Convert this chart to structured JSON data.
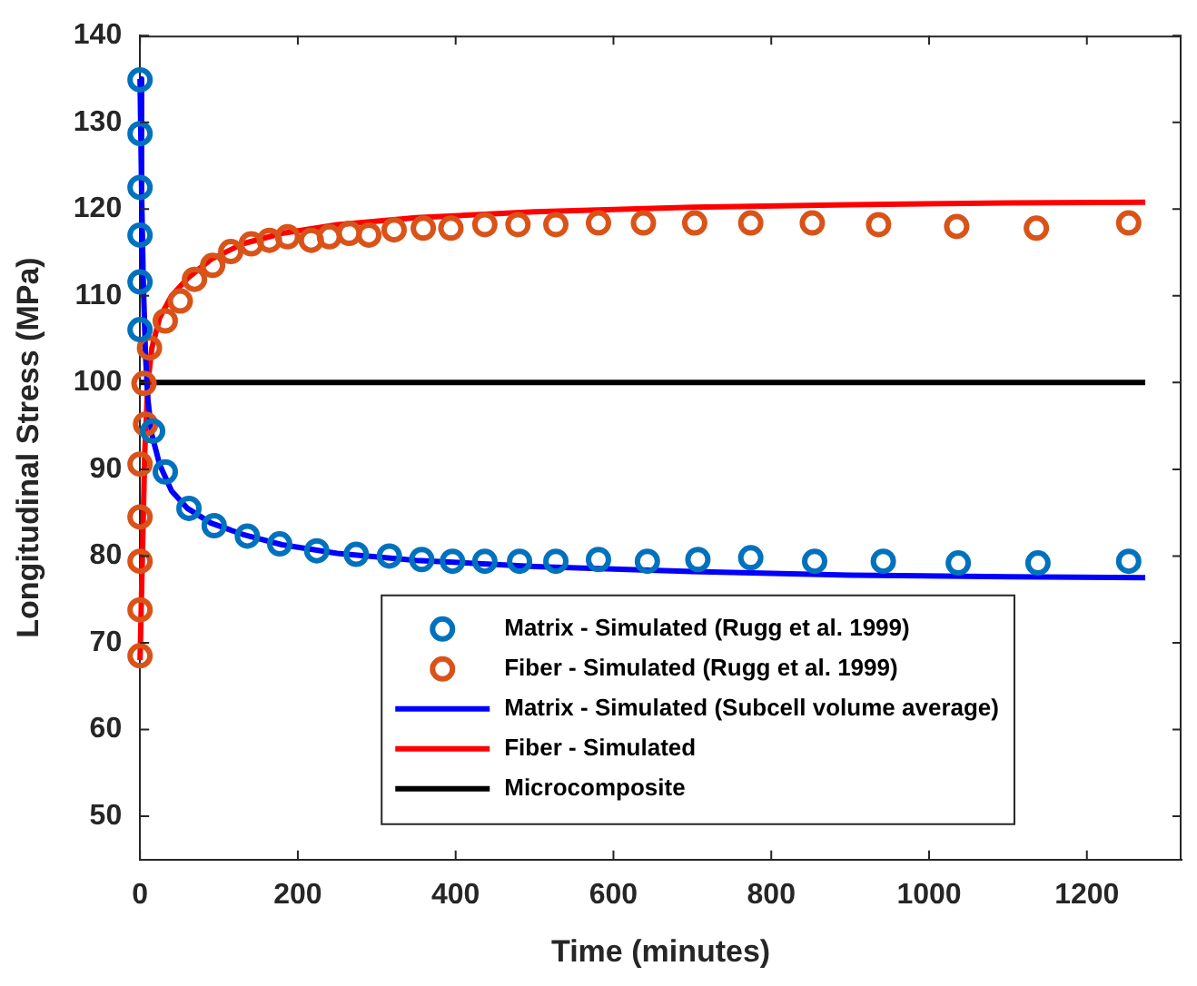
{
  "chart_data": {
    "type": "line",
    "xlabel": "Time (minutes)",
    "ylabel": "Longitudinal Stress (MPa)",
    "xlim": [
      0,
      1320
    ],
    "xticks": [
      0,
      200,
      400,
      600,
      800,
      1000,
      1200
    ],
    "ylim": [
      45,
      140
    ],
    "yticks": [
      50,
      60,
      70,
      80,
      90,
      100,
      110,
      120,
      130,
      140
    ],
    "grid": false,
    "legend": "bottom",
    "series": [
      {
        "name": "Matrix - Simulated (Rugg et al. 1999)",
        "type": "scatter",
        "marker": "circle",
        "color": "#0072bd",
        "x": [
          0,
          0,
          0,
          0,
          0,
          0,
          16,
          32,
          62,
          94,
          136,
          177,
          224,
          274,
          316,
          357,
          396,
          437,
          481,
          527,
          581,
          643,
          707,
          774,
          855,
          942,
          1037,
          1138,
          1253
        ],
        "values": [
          134.9,
          128.7,
          122.5,
          117,
          111.6,
          106.1,
          94.4,
          89.7,
          85.5,
          83.5,
          82.3,
          81.4,
          80.6,
          80.2,
          80,
          79.6,
          79.4,
          79.4,
          79.4,
          79.4,
          79.6,
          79.4,
          79.6,
          79.8,
          79.4,
          79.4,
          79.2,
          79.2,
          79.4
        ]
      },
      {
        "name": "Fiber - Simulated (Rugg et al. 1999)",
        "type": "scatter",
        "marker": "circle",
        "color": "#d95319",
        "x": [
          0,
          0,
          0,
          0,
          0,
          7,
          5,
          12,
          32,
          51,
          69,
          92,
          115,
          141,
          164,
          187,
          217,
          240,
          265,
          290,
          322,
          359,
          394,
          437,
          479,
          527,
          581,
          638,
          703,
          774,
          852,
          936,
          1035,
          1136,
          1253
        ],
        "values": [
          68.5,
          73.8,
          79.4,
          84.5,
          90.6,
          95.2,
          99.9,
          104,
          107.1,
          109.4,
          111.9,
          113.5,
          115.1,
          116,
          116.4,
          116.8,
          116.4,
          116.8,
          117.2,
          117,
          117.6,
          117.8,
          117.8,
          118.2,
          118.2,
          118.2,
          118.4,
          118.4,
          118.4,
          118.4,
          118.4,
          118.2,
          118,
          117.8,
          118.4
        ]
      },
      {
        "name": "Matrix - Simulated (Subcell volume average)",
        "marker": "none",
        "color": "#0000ff",
        "x": [
          0,
          2,
          4,
          7,
          10,
          15,
          25,
          40,
          60,
          90,
          130,
          180,
          250,
          350,
          500,
          700,
          900,
          1100,
          1274
        ],
        "values": [
          135,
          122,
          112,
          103,
          98,
          94,
          90.5,
          87.5,
          85.5,
          83.8,
          82.5,
          81.3,
          80.3,
          79.5,
          78.8,
          78.2,
          77.8,
          77.6,
          77.5
        ]
      },
      {
        "name": "Fiber - Simulated",
        "marker": "none",
        "color": "#ff0000",
        "x": [
          0,
          3,
          6,
          10,
          15,
          25,
          40,
          60,
          90,
          130,
          180,
          250,
          350,
          500,
          700,
          900,
          1100,
          1274
        ],
        "values": [
          68,
          80,
          92,
          100,
          104,
          107.5,
          110,
          112,
          114.2,
          116,
          117.2,
          118.2,
          119,
          119.7,
          120.2,
          120.5,
          120.7,
          120.8
        ]
      },
      {
        "name": "Microcomposite",
        "marker": "none",
        "color": "#000000",
        "x": [
          0,
          1274
        ],
        "values": [
          100,
          100
        ]
      }
    ]
  }
}
